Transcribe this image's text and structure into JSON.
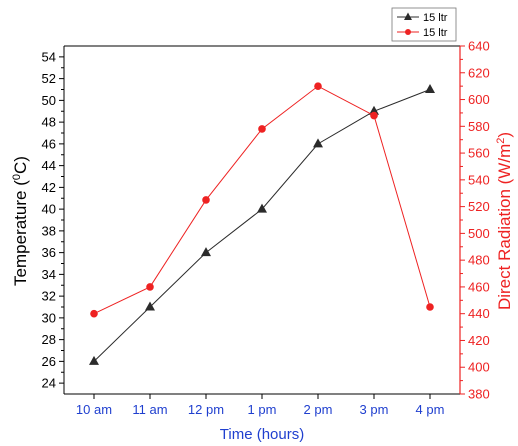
{
  "chart_data": {
    "type": "line",
    "categories": [
      "10 am",
      "11 am",
      "12 pm",
      "1 pm",
      "2 pm",
      "3 pm",
      "4 pm"
    ],
    "xlabel": "Time (hours)",
    "ylabel_left": {
      "main": "Temperature (",
      "sup": "0",
      "tail": "C)"
    },
    "ylabel_right": {
      "main": "Direct Radiation (W/m",
      "sup": "2",
      "tail": ")"
    },
    "ylim_left": [
      23,
      55
    ],
    "yticks_left": [
      24,
      26,
      28,
      30,
      32,
      34,
      36,
      38,
      40,
      42,
      44,
      46,
      48,
      50,
      52,
      54
    ],
    "ylim_right": [
      380,
      640
    ],
    "yticks_right": [
      380,
      400,
      420,
      440,
      460,
      480,
      500,
      520,
      540,
      560,
      580,
      600,
      620,
      640
    ],
    "grid": false,
    "legend_position": "top-right",
    "series": [
      {
        "name": "15 ltr",
        "axis": "left",
        "marker": "triangle",
        "color": "#2b2b2b",
        "values": [
          26,
          31,
          36,
          40,
          46,
          49,
          51
        ]
      },
      {
        "name": "15 ltr",
        "axis": "right",
        "marker": "circle",
        "color": "#ee2222",
        "values": [
          440,
          460,
          525,
          578,
          610,
          588,
          445
        ]
      }
    ],
    "colors": {
      "left_axis": "#000000",
      "right_axis": "#ee2222",
      "x_axis_text": "#1f3fcf"
    }
  }
}
